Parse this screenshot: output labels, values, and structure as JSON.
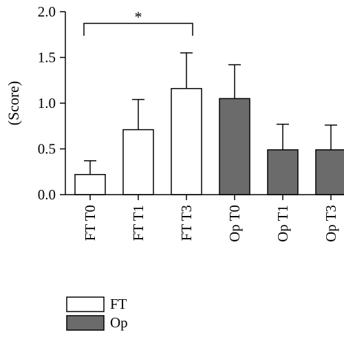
{
  "chart_data": {
    "type": "bar",
    "title": "",
    "xlabel": "",
    "ylabel": "(Score)",
    "ylim": [
      0,
      2.0
    ],
    "yticks": [
      "0.0",
      "0.5",
      "1.0",
      "1.5",
      "2.0"
    ],
    "grid": false,
    "legend_position": "bottom-left",
    "categories": [
      "FT T0",
      "FT T1",
      "FT T3",
      "Op T0",
      "Op T1",
      "Op T3"
    ],
    "values": [
      0.22,
      0.71,
      1.16,
      1.05,
      0.49,
      0.49
    ],
    "error_upper": [
      0.37,
      1.04,
      1.55,
      1.42,
      0.77,
      0.76
    ],
    "groups": [
      "FT",
      "FT",
      "FT",
      "Op",
      "Op",
      "Op"
    ],
    "series": [
      {
        "name": "FT",
        "color": "#ffffff"
      },
      {
        "name": "Op",
        "color": "#6b6b6b"
      }
    ],
    "annotations": [
      {
        "text": "*",
        "from": "FT T0",
        "to": "FT T3"
      }
    ]
  }
}
